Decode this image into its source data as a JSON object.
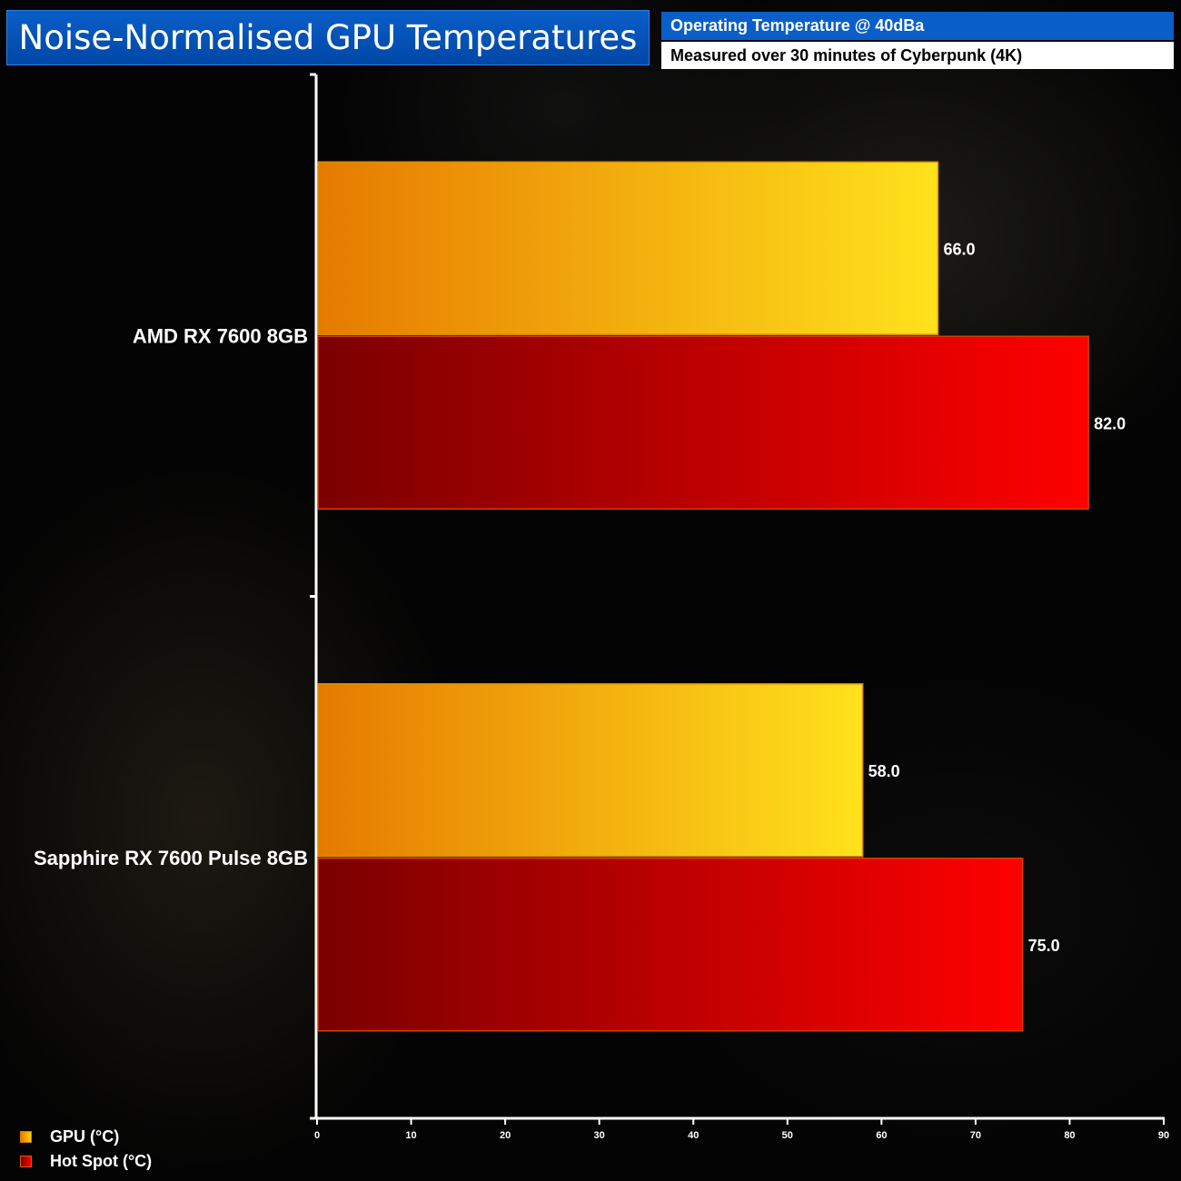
{
  "header": {
    "title": "Noise-Normalised GPU Temperatures",
    "subtitle_line1": "Operating Temperature @ 40dBa",
    "subtitle_line2": "Measured over 30 minutes of Cyberpunk (4K)"
  },
  "legend": {
    "items": [
      {
        "label": "GPU (°C)",
        "color": "#f5a000"
      },
      {
        "label": "Hot Spot (°C)",
        "color": "#c80000"
      }
    ]
  },
  "chart_data": {
    "type": "bar",
    "orientation": "horizontal",
    "categories": [
      "AMD RX 7600 8GB",
      "Sapphire RX 7600 Pulse 8GB"
    ],
    "series": [
      {
        "name": "GPU (°C)",
        "values": [
          66.0,
          58.0
        ],
        "color_start": "#e67a00",
        "color_end": "#ffe21c"
      },
      {
        "name": "Hot Spot (°C)",
        "values": [
          82.0,
          75.0
        ],
        "color_start": "#7a0000",
        "color_end": "#ff0000"
      }
    ],
    "value_labels": [
      [
        "66.0",
        "58.0"
      ],
      [
        "82.0",
        "75.0"
      ]
    ],
    "xlim": [
      0,
      90
    ],
    "xticks": [
      0,
      10,
      20,
      30,
      40,
      50,
      60,
      70,
      80,
      90
    ],
    "grid": false,
    "legend_position": "bottom-left"
  }
}
